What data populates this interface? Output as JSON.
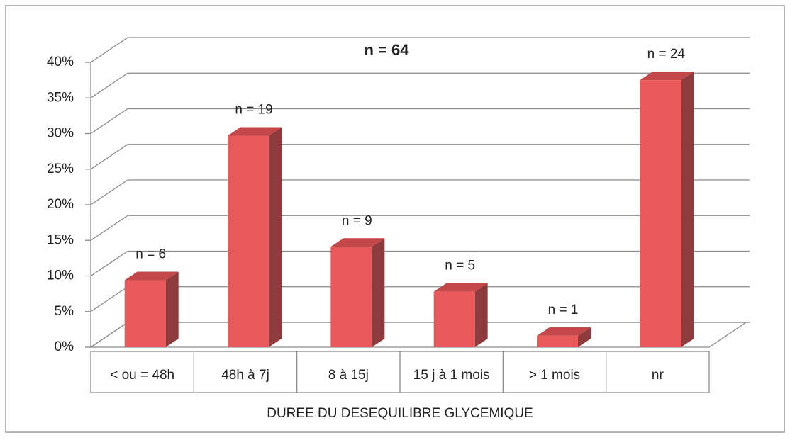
{
  "chart_data": {
    "type": "bar3d",
    "subtitle": "n = 64",
    "x_label": "DUREE DU DESEQUILIBRE GLYCEMIQUE",
    "categories": [
      "< ou = 48h",
      "48h à 7j",
      "8 à 15j",
      "15 j à 1 mois",
      "> 1 mois",
      "nr"
    ],
    "values": [
      9.4,
      29.7,
      14.1,
      7.8,
      1.6,
      37.5
    ],
    "annotations": [
      "n = 6",
      "n = 19",
      "n = 9",
      "n = 5",
      "n = 1",
      "n = 24"
    ],
    "color": "#e9585b",
    "ylim": [
      0,
      40
    ],
    "yticks": [
      {
        "value": 0,
        "label": "0%"
      },
      {
        "value": 5,
        "label": "5%"
      },
      {
        "value": 10,
        "label": "10%"
      },
      {
        "value": 15,
        "label": "15%"
      },
      {
        "value": 20,
        "label": "20%"
      },
      {
        "value": 25,
        "label": "25%"
      },
      {
        "value": 30,
        "label": "30%"
      },
      {
        "value": 35,
        "label": "35%"
      },
      {
        "value": 40,
        "label": "40%"
      }
    ],
    "grid": true
  }
}
